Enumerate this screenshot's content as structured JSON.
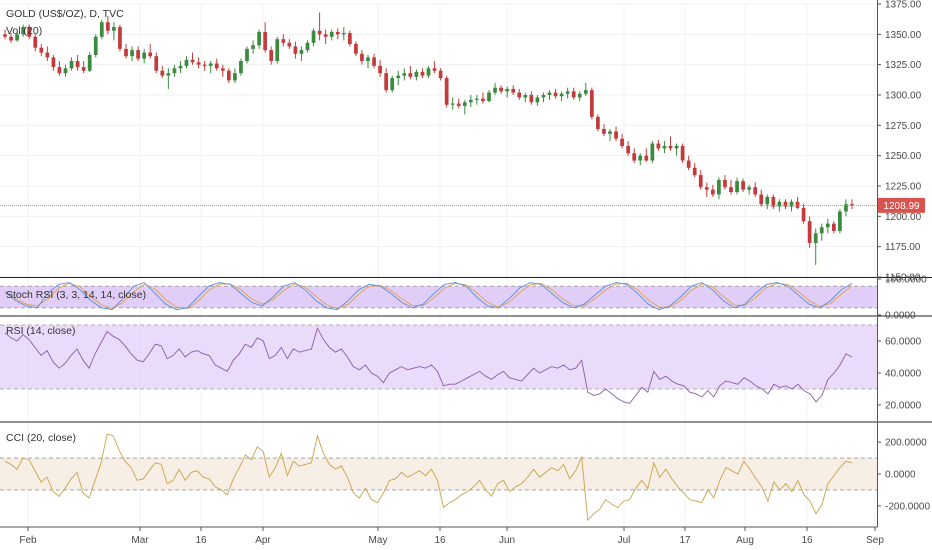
{
  "chart_data": {
    "type": "candlestick",
    "title": "GOLD (US$/OZ), D, TVC",
    "volume_label": "Vol (20)",
    "last_price_label": "1208.99",
    "last_price": 1208.99,
    "colors": {
      "up": "#3b8a3e",
      "down": "#c43b3b",
      "last_line": "#e07b5a",
      "last_badge": "#d9534f",
      "stoch_k": "#5a8fd6",
      "stoch_d": "#e0a04a",
      "rsi_line": "#8a5ca8",
      "cci_line": "#c9a24a",
      "rsi_band": "#e6d5fa",
      "stoch_band": "#dcc6f7",
      "cci_band": "#f6ece0"
    },
    "x_ticks": [
      "Feb",
      "Mar",
      "16",
      "Apr",
      "May",
      "16",
      "Jun",
      "Jul",
      "17",
      "Aug",
      "16",
      "Sep"
    ],
    "price_axis": {
      "ylim": [
        1150,
        1375
      ],
      "ticks": [
        "1375.00",
        "1350.00",
        "1325.00",
        "1300.00",
        "1275.00",
        "1250.00",
        "1225.00",
        "1200.00",
        "1175.00",
        "1150.00"
      ]
    },
    "candles": [
      [
        1350,
        1354,
        1346,
        1348
      ],
      [
        1348,
        1351,
        1343,
        1345
      ],
      [
        1345,
        1352,
        1344,
        1350
      ],
      [
        1350,
        1358,
        1348,
        1356
      ],
      [
        1356,
        1358,
        1346,
        1348
      ],
      [
        1348,
        1350,
        1336,
        1339
      ],
      [
        1339,
        1342,
        1332,
        1335
      ],
      [
        1335,
        1340,
        1328,
        1331
      ],
      [
        1331,
        1333,
        1320,
        1323
      ],
      [
        1323,
        1328,
        1316,
        1318
      ],
      [
        1318,
        1325,
        1315,
        1322
      ],
      [
        1322,
        1331,
        1320,
        1328
      ],
      [
        1328,
        1333,
        1320,
        1323
      ],
      [
        1323,
        1328,
        1318,
        1320
      ],
      [
        1320,
        1335,
        1319,
        1333
      ],
      [
        1333,
        1350,
        1331,
        1348
      ],
      [
        1348,
        1362,
        1346,
        1360
      ],
      [
        1360,
        1365,
        1350,
        1353
      ],
      [
        1353,
        1360,
        1345,
        1356
      ],
      [
        1356,
        1358,
        1336,
        1338
      ],
      [
        1338,
        1342,
        1330,
        1332
      ],
      [
        1332,
        1340,
        1328,
        1337
      ],
      [
        1337,
        1340,
        1328,
        1330
      ],
      [
        1330,
        1338,
        1326,
        1335
      ],
      [
        1335,
        1342,
        1330,
        1332
      ],
      [
        1332,
        1335,
        1318,
        1320
      ],
      [
        1320,
        1324,
        1314,
        1316
      ],
      [
        1316,
        1322,
        1305,
        1318
      ],
      [
        1318,
        1325,
        1315,
        1322
      ],
      [
        1322,
        1328,
        1318,
        1324
      ],
      [
        1324,
        1332,
        1322,
        1329
      ],
      [
        1329,
        1335,
        1325,
        1327
      ],
      [
        1327,
        1331,
        1322,
        1325
      ],
      [
        1325,
        1328,
        1320,
        1324
      ],
      [
        1324,
        1328,
        1318,
        1326
      ],
      [
        1326,
        1330,
        1320,
        1322
      ],
      [
        1322,
        1325,
        1315,
        1320
      ],
      [
        1320,
        1322,
        1310,
        1312
      ],
      [
        1312,
        1322,
        1310,
        1318
      ],
      [
        1318,
        1330,
        1316,
        1328
      ],
      [
        1328,
        1340,
        1326,
        1338
      ],
      [
        1338,
        1345,
        1334,
        1341
      ],
      [
        1341,
        1354,
        1338,
        1352
      ],
      [
        1352,
        1360,
        1335,
        1337
      ],
      [
        1337,
        1340,
        1325,
        1328
      ],
      [
        1328,
        1348,
        1326,
        1346
      ],
      [
        1346,
        1350,
        1340,
        1343
      ],
      [
        1343,
        1346,
        1338,
        1340
      ],
      [
        1340,
        1344,
        1330,
        1334
      ],
      [
        1334,
        1340,
        1328,
        1337
      ],
      [
        1337,
        1345,
        1335,
        1343
      ],
      [
        1343,
        1355,
        1340,
        1353
      ],
      [
        1353,
        1368,
        1345,
        1350
      ],
      [
        1350,
        1354,
        1342,
        1348
      ],
      [
        1348,
        1354,
        1345,
        1352
      ],
      [
        1352,
        1355,
        1346,
        1350
      ],
      [
        1350,
        1356,
        1345,
        1351
      ],
      [
        1351,
        1353,
        1340,
        1342
      ],
      [
        1342,
        1344,
        1332,
        1334
      ],
      [
        1334,
        1337,
        1325,
        1328
      ],
      [
        1328,
        1333,
        1322,
        1331
      ],
      [
        1331,
        1334,
        1322,
        1324
      ],
      [
        1324,
        1329,
        1315,
        1318
      ],
      [
        1318,
        1322,
        1302,
        1304
      ],
      [
        1304,
        1316,
        1302,
        1314
      ],
      [
        1314,
        1320,
        1308,
        1316
      ],
      [
        1316,
        1322,
        1312,
        1318
      ],
      [
        1318,
        1324,
        1313,
        1315
      ],
      [
        1315,
        1321,
        1312,
        1319
      ],
      [
        1319,
        1322,
        1314,
        1316
      ],
      [
        1316,
        1324,
        1314,
        1322
      ],
      [
        1322,
        1328,
        1318,
        1320
      ],
      [
        1320,
        1322,
        1312,
        1314
      ],
      [
        1314,
        1316,
        1290,
        1292
      ],
      [
        1292,
        1298,
        1288,
        1293
      ],
      [
        1293,
        1297,
        1289,
        1291
      ],
      [
        1291,
        1296,
        1284,
        1294
      ],
      [
        1294,
        1300,
        1290,
        1296
      ],
      [
        1296,
        1300,
        1292,
        1297
      ],
      [
        1297,
        1302,
        1293,
        1295
      ],
      [
        1295,
        1304,
        1294,
        1302
      ],
      [
        1302,
        1310,
        1300,
        1306
      ],
      [
        1306,
        1308,
        1301,
        1303
      ],
      [
        1303,
        1307,
        1298,
        1305
      ],
      [
        1305,
        1308,
        1300,
        1302
      ],
      [
        1302,
        1305,
        1296,
        1298
      ],
      [
        1298,
        1302,
        1294,
        1300
      ],
      [
        1300,
        1303,
        1292,
        1294
      ],
      [
        1294,
        1300,
        1291,
        1298
      ],
      [
        1298,
        1302,
        1294,
        1300
      ],
      [
        1300,
        1304,
        1296,
        1302
      ],
      [
        1302,
        1305,
        1297,
        1299
      ],
      [
        1299,
        1303,
        1295,
        1301
      ],
      [
        1301,
        1306,
        1297,
        1303
      ],
      [
        1303,
        1306,
        1296,
        1298
      ],
      [
        1298,
        1303,
        1295,
        1301
      ],
      [
        1301,
        1310,
        1299,
        1304
      ],
      [
        1304,
        1306,
        1280,
        1282
      ],
      [
        1282,
        1284,
        1270,
        1272
      ],
      [
        1272,
        1276,
        1266,
        1268
      ],
      [
        1268,
        1272,
        1262,
        1270
      ],
      [
        1270,
        1274,
        1262,
        1264
      ],
      [
        1264,
        1268,
        1256,
        1258
      ],
      [
        1258,
        1262,
        1250,
        1252
      ],
      [
        1252,
        1256,
        1244,
        1246
      ],
      [
        1246,
        1252,
        1242,
        1250
      ],
      [
        1250,
        1256,
        1245,
        1246
      ],
      [
        1246,
        1262,
        1244,
        1260
      ],
      [
        1260,
        1263,
        1254,
        1256
      ],
      [
        1256,
        1262,
        1252,
        1258
      ],
      [
        1258,
        1266,
        1254,
        1256
      ],
      [
        1256,
        1260,
        1250,
        1258
      ],
      [
        1258,
        1260,
        1244,
        1246
      ],
      [
        1246,
        1250,
        1238,
        1240
      ],
      [
        1240,
        1244,
        1232,
        1234
      ],
      [
        1234,
        1238,
        1222,
        1224
      ],
      [
        1224,
        1228,
        1216,
        1222
      ],
      [
        1222,
        1226,
        1216,
        1218
      ],
      [
        1218,
        1232,
        1214,
        1230
      ],
      [
        1230,
        1234,
        1222,
        1224
      ],
      [
        1224,
        1230,
        1218,
        1220
      ],
      [
        1220,
        1232,
        1218,
        1229
      ],
      [
        1229,
        1231,
        1220,
        1222
      ],
      [
        1222,
        1226,
        1218,
        1224
      ],
      [
        1224,
        1228,
        1216,
        1218
      ],
      [
        1218,
        1222,
        1208,
        1210
      ],
      [
        1210,
        1218,
        1206,
        1216
      ],
      [
        1216,
        1218,
        1206,
        1208
      ],
      [
        1208,
        1214,
        1204,
        1212
      ],
      [
        1212,
        1214,
        1206,
        1208
      ],
      [
        1208,
        1214,
        1204,
        1212
      ],
      [
        1212,
        1216,
        1206,
        1207
      ],
      [
        1207,
        1210,
        1194,
        1196
      ],
      [
        1196,
        1200,
        1174,
        1178
      ],
      [
        1178,
        1190,
        1160,
        1186
      ],
      [
        1186,
        1194,
        1180,
        1191
      ],
      [
        1191,
        1198,
        1186,
        1194
      ],
      [
        1194,
        1196,
        1186,
        1188
      ],
      [
        1188,
        1206,
        1186,
        1204
      ],
      [
        1204,
        1214,
        1200,
        1210
      ],
      [
        1210,
        1214,
        1206,
        1209
      ]
    ],
    "stoch_rsi": {
      "title": "Stoch RSI (3, 3, 14, 14, close)",
      "ylim": [
        0,
        100
      ],
      "bands": [
        20,
        80
      ],
      "ticks": [
        "100.0000",
        "0.0000"
      ],
      "k": [
        65,
        40,
        25,
        20,
        60,
        85,
        90,
        70,
        40,
        20,
        15,
        45,
        80,
        90,
        60,
        30,
        15,
        20,
        50,
        80,
        90,
        85,
        60,
        35,
        25,
        50,
        80,
        90,
        70,
        40,
        20,
        15,
        40,
        70,
        85,
        80,
        60,
        35,
        20,
        30,
        60,
        85,
        90,
        80,
        50,
        25,
        20,
        45,
        75,
        90,
        85,
        60,
        35,
        20,
        30,
        55,
        80,
        90,
        85,
        60,
        30,
        15,
        25,
        50,
        80,
        90,
        70,
        40,
        20,
        30,
        60,
        85,
        90,
        80,
        55,
        30,
        20,
        40,
        70,
        88
      ],
      "d": [
        60,
        45,
        30,
        25,
        45,
        75,
        88,
        78,
        50,
        28,
        18,
        35,
        65,
        85,
        72,
        42,
        22,
        18,
        38,
        68,
        86,
        86,
        70,
        45,
        30,
        42,
        68,
        86,
        78,
        52,
        28,
        18,
        30,
        58,
        80,
        82,
        68,
        45,
        26,
        26,
        48,
        75,
        88,
        84,
        62,
        35,
        22,
        35,
        62,
        84,
        88,
        70,
        45,
        26,
        25,
        45,
        70,
        86,
        88,
        70,
        42,
        22,
        22,
        40,
        68,
        86,
        78,
        52,
        28,
        26,
        48,
        76,
        88,
        85,
        65,
        40,
        24,
        32,
        58,
        82
      ]
    },
    "rsi": {
      "title": "RSI (14, close)",
      "ylim": [
        10,
        75
      ],
      "bands": [
        30,
        70
      ],
      "ticks": [
        "60.0000",
        "40.0000",
        "20.0000"
      ],
      "values": [
        65,
        62,
        60,
        64,
        61,
        56,
        51,
        54,
        47,
        43,
        46,
        51,
        55,
        48,
        43,
        52,
        59,
        66,
        63,
        61,
        57,
        52,
        48,
        47,
        52,
        58,
        57,
        49,
        51,
        55,
        50,
        53,
        54,
        52,
        51,
        45,
        43,
        41,
        48,
        52,
        58,
        56,
        62,
        60,
        49,
        51,
        56,
        49,
        55,
        53,
        54,
        55,
        68,
        61,
        56,
        53,
        55,
        50,
        44,
        42,
        45,
        40,
        38,
        34,
        40,
        42,
        44,
        42,
        43,
        44,
        43,
        45,
        41,
        32,
        33,
        33,
        35,
        37,
        39,
        41,
        38,
        36,
        39,
        41,
        37,
        36,
        35,
        39,
        43,
        40,
        42,
        44,
        43,
        45,
        42,
        43,
        48,
        28,
        26,
        27,
        30,
        27,
        24,
        22,
        21,
        26,
        31,
        28,
        41,
        36,
        38,
        35,
        33,
        32,
        28,
        27,
        25,
        29,
        25,
        32,
        35,
        34,
        33,
        37,
        35,
        32,
        30,
        27,
        33,
        31,
        32,
        30,
        33,
        29,
        27,
        22,
        26,
        36,
        40,
        45,
        52,
        50
      ]
    },
    "cci": {
      "title": "CCI (20, close)",
      "ylim": [
        -320,
        320
      ],
      "bands": [
        -100,
        100
      ],
      "ticks": [
        "200.0000",
        "0.0000",
        "-200.0000"
      ],
      "values": [
        80,
        60,
        30,
        100,
        90,
        20,
        -50,
        -20,
        -110,
        -140,
        -90,
        -30,
        10,
        -120,
        -150,
        -40,
        70,
        250,
        240,
        150,
        80,
        40,
        -40,
        -30,
        20,
        70,
        60,
        -60,
        -40,
        30,
        -40,
        10,
        20,
        -20,
        -30,
        -80,
        -100,
        -130,
        -30,
        40,
        120,
        90,
        170,
        140,
        -20,
        40,
        130,
        -10,
        80,
        50,
        60,
        70,
        240,
        130,
        60,
        30,
        50,
        -20,
        -120,
        -150,
        -90,
        -160,
        -180,
        -120,
        -40,
        -30,
        10,
        -20,
        0,
        20,
        -10,
        30,
        -40,
        -210,
        -180,
        -160,
        -130,
        -110,
        -80,
        -40,
        -100,
        -140,
        -60,
        -40,
        -110,
        -80,
        -60,
        -20,
        30,
        -20,
        10,
        40,
        20,
        60,
        -30,
        20,
        110,
        -290,
        -250,
        -220,
        -160,
        -190,
        -210,
        -170,
        -160,
        -90,
        -40,
        -90,
        70,
        -20,
        30,
        -30,
        -80,
        -120,
        -160,
        -170,
        -180,
        -100,
        -150,
        -40,
        40,
        20,
        0,
        80,
        30,
        -30,
        -80,
        -170,
        -50,
        -100,
        -60,
        -110,
        -40,
        -130,
        -170,
        -250,
        -190,
        -60,
        -10,
        40,
        80,
        70
      ]
    }
  }
}
